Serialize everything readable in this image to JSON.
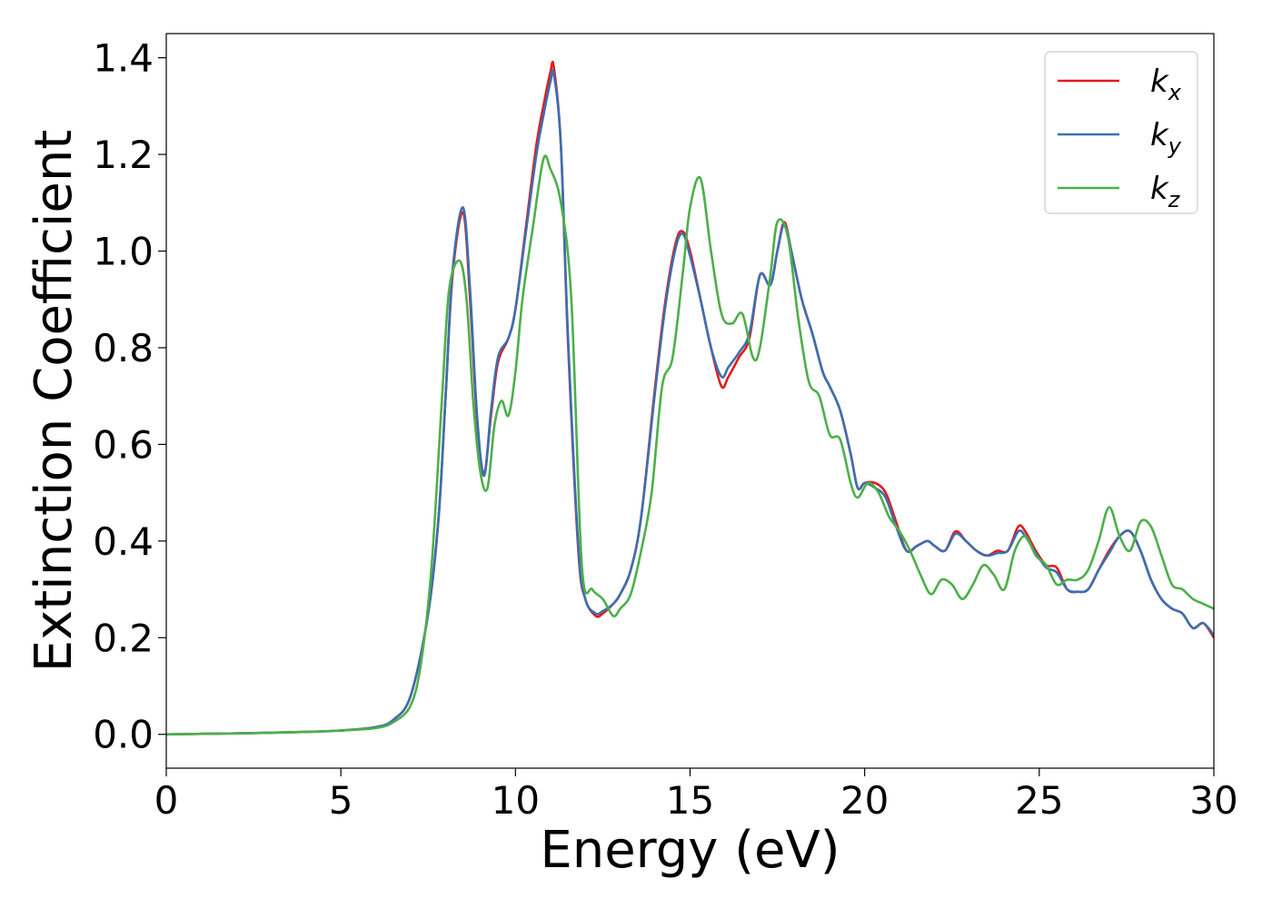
{
  "chart_data": {
    "type": "line",
    "xlabel": "Energy (eV)",
    "ylabel": "Extinction Coefficient",
    "xlim": [
      0,
      30
    ],
    "ylim": [
      -0.07,
      1.45
    ],
    "xticks": [
      0,
      5,
      10,
      15,
      20,
      25,
      30
    ],
    "xtick_labels": [
      "0",
      "5",
      "10",
      "15",
      "20",
      "25",
      "30"
    ],
    "yticks": [
      0.0,
      0.2,
      0.4,
      0.6,
      0.8,
      1.0,
      1.2,
      1.4
    ],
    "ytick_labels": [
      "0.0",
      "0.2",
      "0.4",
      "0.6",
      "0.8",
      "1.0",
      "1.2",
      "1.4"
    ],
    "grid": false,
    "legend_position": "top-right",
    "series": [
      {
        "name": "k_x",
        "label_base": "k",
        "label_sub": "x",
        "color": "#e41a1c",
        "x": [
          0,
          2,
          4,
          5,
          6,
          6.5,
          7,
          7.5,
          7.8,
          8.0,
          8.2,
          8.5,
          8.7,
          8.9,
          9.1,
          9.3,
          9.5,
          9.8,
          10.0,
          10.3,
          10.6,
          10.8,
          11.0,
          11.1,
          11.3,
          11.5,
          11.8,
          12.0,
          12.3,
          12.5,
          12.8,
          13.0,
          13.3,
          13.6,
          14.0,
          14.3,
          14.6,
          14.8,
          15.0,
          15.3,
          15.6,
          15.9,
          16.1,
          16.4,
          16.7,
          17.0,
          17.3,
          17.5,
          17.7,
          17.9,
          18.2,
          18.5,
          18.8,
          19.0,
          19.3,
          19.6,
          19.8,
          20.0,
          20.3,
          20.6,
          20.9,
          21.2,
          21.5,
          21.8,
          22.0,
          22.3,
          22.6,
          22.9,
          23.2,
          23.5,
          23.8,
          24.1,
          24.4,
          24.6,
          24.9,
          25.2,
          25.5,
          25.8,
          26.1,
          26.4,
          26.7,
          27.0,
          27.3,
          27.6,
          27.9,
          28.2,
          28.5,
          28.8,
          29.1,
          29.4,
          29.7,
          30.0
        ],
        "y": [
          0.0,
          0.002,
          0.005,
          0.008,
          0.015,
          0.03,
          0.08,
          0.25,
          0.45,
          0.7,
          0.95,
          1.08,
          0.9,
          0.65,
          0.54,
          0.66,
          0.77,
          0.82,
          0.88,
          1.05,
          1.22,
          1.3,
          1.37,
          1.38,
          1.22,
          0.82,
          0.38,
          0.28,
          0.245,
          0.25,
          0.27,
          0.29,
          0.34,
          0.45,
          0.72,
          0.9,
          1.02,
          1.04,
          1.0,
          0.9,
          0.8,
          0.72,
          0.74,
          0.78,
          0.82,
          0.95,
          0.93,
          1.0,
          1.06,
          1.0,
          0.9,
          0.83,
          0.75,
          0.72,
          0.67,
          0.58,
          0.51,
          0.52,
          0.52,
          0.5,
          0.44,
          0.38,
          0.39,
          0.4,
          0.39,
          0.38,
          0.42,
          0.4,
          0.38,
          0.37,
          0.38,
          0.38,
          0.43,
          0.42,
          0.38,
          0.35,
          0.345,
          0.3,
          0.295,
          0.3,
          0.34,
          0.38,
          0.41,
          0.42,
          0.38,
          0.32,
          0.28,
          0.26,
          0.25,
          0.22,
          0.23,
          0.2
        ]
      },
      {
        "name": "k_y",
        "label_base": "k",
        "label_sub": "y",
        "color": "#3b6fb0",
        "x": [
          0,
          2,
          4,
          5,
          6,
          6.5,
          7,
          7.5,
          7.8,
          8.0,
          8.2,
          8.5,
          8.7,
          8.9,
          9.1,
          9.3,
          9.5,
          9.8,
          10.0,
          10.3,
          10.6,
          10.8,
          11.0,
          11.1,
          11.3,
          11.5,
          11.8,
          12.0,
          12.3,
          12.5,
          12.8,
          13.0,
          13.3,
          13.6,
          14.0,
          14.3,
          14.6,
          14.8,
          15.0,
          15.3,
          15.6,
          15.9,
          16.1,
          16.4,
          16.7,
          17.0,
          17.3,
          17.5,
          17.7,
          17.9,
          18.2,
          18.5,
          18.8,
          19.0,
          19.3,
          19.6,
          19.8,
          20.0,
          20.3,
          20.6,
          20.9,
          21.2,
          21.5,
          21.8,
          22.0,
          22.3,
          22.6,
          22.9,
          23.2,
          23.5,
          23.8,
          24.1,
          24.4,
          24.6,
          24.9,
          25.2,
          25.5,
          25.8,
          26.1,
          26.4,
          26.7,
          27.0,
          27.3,
          27.6,
          27.9,
          28.2,
          28.5,
          28.8,
          29.1,
          29.4,
          29.7,
          30.0
        ],
        "y": [
          0.0,
          0.002,
          0.005,
          0.008,
          0.015,
          0.03,
          0.08,
          0.25,
          0.45,
          0.7,
          0.96,
          1.09,
          0.92,
          0.66,
          0.535,
          0.67,
          0.78,
          0.82,
          0.88,
          1.04,
          1.2,
          1.28,
          1.35,
          1.365,
          1.22,
          0.83,
          0.39,
          0.28,
          0.25,
          0.255,
          0.27,
          0.29,
          0.34,
          0.45,
          0.71,
          0.89,
          1.01,
          1.035,
          0.99,
          0.9,
          0.8,
          0.74,
          0.76,
          0.79,
          0.83,
          0.95,
          0.93,
          1.0,
          1.055,
          1.0,
          0.9,
          0.83,
          0.75,
          0.72,
          0.67,
          0.58,
          0.51,
          0.52,
          0.51,
          0.49,
          0.43,
          0.38,
          0.39,
          0.4,
          0.39,
          0.38,
          0.415,
          0.4,
          0.38,
          0.37,
          0.375,
          0.38,
          0.42,
          0.41,
          0.375,
          0.345,
          0.335,
          0.3,
          0.295,
          0.3,
          0.34,
          0.375,
          0.41,
          0.42,
          0.38,
          0.32,
          0.28,
          0.26,
          0.25,
          0.22,
          0.23,
          0.205
        ]
      },
      {
        "name": "k_z",
        "label_base": "k",
        "label_sub": "z",
        "color": "#4daf4a",
        "x": [
          0,
          2,
          4,
          5,
          6,
          6.5,
          7,
          7.3,
          7.6,
          7.9,
          8.1,
          8.4,
          8.6,
          8.8,
          9.0,
          9.2,
          9.4,
          9.6,
          9.8,
          10.0,
          10.2,
          10.5,
          10.8,
          11.0,
          11.3,
          11.6,
          11.9,
          12.2,
          12.5,
          12.8,
          13.0,
          13.3,
          13.6,
          13.9,
          14.2,
          14.5,
          14.8,
          15.0,
          15.3,
          15.6,
          15.9,
          16.2,
          16.5,
          16.8,
          17.0,
          17.3,
          17.5,
          17.8,
          18.1,
          18.4,
          18.7,
          19.0,
          19.3,
          19.6,
          19.8,
          20.1,
          20.4,
          20.7,
          21.0,
          21.3,
          21.6,
          21.9,
          22.2,
          22.5,
          22.8,
          23.1,
          23.4,
          23.7,
          24.0,
          24.3,
          24.6,
          24.9,
          25.2,
          25.5,
          25.8,
          26.1,
          26.4,
          26.7,
          27.0,
          27.3,
          27.6,
          27.9,
          28.2,
          28.5,
          28.8,
          29.1,
          29.4,
          29.7,
          30.0
        ],
        "y": [
          0.0,
          0.002,
          0.005,
          0.008,
          0.013,
          0.025,
          0.06,
          0.15,
          0.35,
          0.7,
          0.92,
          0.98,
          0.9,
          0.68,
          0.54,
          0.51,
          0.64,
          0.69,
          0.66,
          0.75,
          0.9,
          1.05,
          1.19,
          1.17,
          1.1,
          0.9,
          0.35,
          0.3,
          0.28,
          0.245,
          0.26,
          0.29,
          0.38,
          0.5,
          0.72,
          0.78,
          0.96,
          1.09,
          1.15,
          1.0,
          0.87,
          0.85,
          0.87,
          0.78,
          0.8,
          0.95,
          1.06,
          1.03,
          0.86,
          0.73,
          0.7,
          0.62,
          0.61,
          0.52,
          0.49,
          0.52,
          0.5,
          0.45,
          0.42,
          0.38,
          0.33,
          0.29,
          0.32,
          0.31,
          0.28,
          0.31,
          0.35,
          0.33,
          0.3,
          0.38,
          0.41,
          0.37,
          0.35,
          0.31,
          0.32,
          0.32,
          0.34,
          0.4,
          0.47,
          0.41,
          0.38,
          0.44,
          0.43,
          0.37,
          0.31,
          0.3,
          0.28,
          0.27,
          0.26
        ]
      }
    ]
  }
}
